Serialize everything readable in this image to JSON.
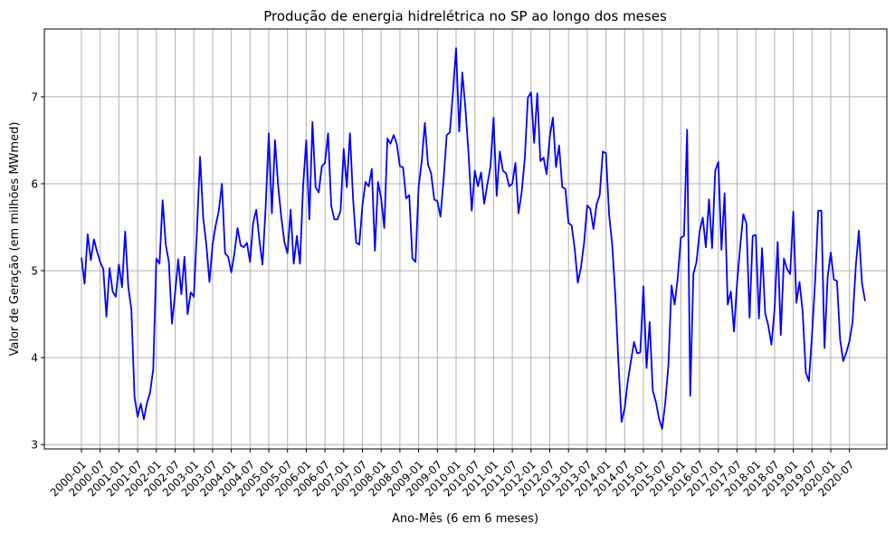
{
  "chart_data": {
    "type": "line",
    "title": "Produção de energia hidrelétrica no SP ao longo dos meses",
    "xlabel": "Ano-Mês (6 em 6 meses)",
    "ylabel": "Valor de Geração (em milhões MWmed)",
    "ylim": [
      2.95,
      7.78
    ],
    "yticks": [
      3,
      4,
      5,
      6,
      7
    ],
    "xticks": [
      "2000-01",
      "2000-07",
      "2001-01",
      "2001-07",
      "2002-01",
      "2002-07",
      "2003-01",
      "2003-07",
      "2004-01",
      "2004-07",
      "2005-01",
      "2005-07",
      "2006-01",
      "2006-07",
      "2007-01",
      "2007-07",
      "2008-01",
      "2008-07",
      "2009-01",
      "2009-07",
      "2010-01",
      "2010-07",
      "2011-01",
      "2011-07",
      "2012-01",
      "2012-07",
      "2013-01",
      "2013-07",
      "2014-01",
      "2014-07",
      "2015-01",
      "2015-07",
      "2016-01",
      "2016-07",
      "2017-01",
      "2017-07",
      "2018-01",
      "2018-07",
      "2019-01",
      "2019-07",
      "2020-01",
      "2020-07"
    ],
    "grid": true,
    "line_color": "#0000ff",
    "grid_color": "#b0b0b0",
    "x_start": "2000-01",
    "series": [
      {
        "values": [
          5.15,
          4.85,
          5.42,
          5.12,
          5.36,
          5.22,
          5.1,
          5.02,
          4.47,
          5.03,
          4.76,
          4.7,
          5.07,
          4.81,
          5.45,
          4.82,
          4.55,
          3.55,
          3.32,
          3.47,
          3.29,
          3.48,
          3.6,
          3.87,
          5.14,
          5.08,
          5.81,
          5.3,
          5.1,
          4.39,
          4.74,
          5.13,
          4.73,
          5.16,
          4.5,
          4.75,
          4.7,
          5.47,
          6.31,
          5.61,
          5.3,
          4.87,
          5.3,
          5.52,
          5.69,
          6.0,
          5.2,
          5.16,
          4.98,
          5.2,
          5.49,
          5.29,
          5.27,
          5.32,
          5.1,
          5.55,
          5.7,
          5.35,
          5.07,
          5.73,
          6.58,
          5.66,
          6.5,
          5.98,
          5.62,
          5.33,
          5.2,
          5.7,
          5.08,
          5.4,
          5.08,
          5.97,
          6.5,
          5.59,
          6.71,
          5.96,
          5.9,
          6.2,
          6.24,
          6.58,
          5.75,
          5.59,
          5.59,
          5.69,
          6.4,
          5.96,
          6.58,
          5.83,
          5.32,
          5.3,
          5.75,
          6.02,
          5.97,
          6.17,
          5.23,
          6.02,
          5.83,
          5.49,
          6.52,
          6.46,
          6.56,
          6.46,
          6.2,
          6.19,
          5.83,
          5.87,
          5.14,
          5.1,
          5.96,
          6.26,
          6.7,
          6.22,
          6.12,
          5.82,
          5.8,
          5.62,
          6.05,
          6.56,
          6.59,
          7.05,
          7.56,
          6.6,
          7.28,
          6.86,
          6.34,
          5.69,
          6.15,
          5.97,
          6.13,
          5.77,
          5.99,
          6.19,
          6.76,
          5.86,
          6.37,
          6.15,
          6.12,
          5.97,
          6.0,
          6.24,
          5.66,
          5.9,
          6.29,
          6.99,
          7.05,
          6.47,
          7.04,
          6.26,
          6.3,
          6.11,
          6.54,
          6.76,
          6.19,
          6.44,
          5.96,
          5.94,
          5.55,
          5.52,
          5.25,
          4.86,
          5.04,
          5.32,
          5.75,
          5.71,
          5.48,
          5.76,
          5.87,
          6.37,
          6.35,
          5.65,
          5.3,
          4.72,
          3.94,
          3.26,
          3.42,
          3.73,
          3.96,
          4.18,
          4.05,
          4.06,
          4.82,
          3.88,
          4.41,
          3.62,
          3.49,
          3.3,
          3.18,
          3.48,
          3.91,
          4.83,
          4.61,
          4.92,
          5.38,
          5.4,
          6.62,
          3.56,
          4.96,
          5.1,
          5.45,
          5.61,
          5.27,
          5.82,
          5.26,
          6.15,
          6.25,
          5.24,
          5.89,
          4.61,
          4.76,
          4.3,
          4.86,
          5.28,
          5.65,
          5.54,
          4.46,
          5.4,
          5.41,
          4.45,
          5.26,
          4.51,
          4.37,
          4.15,
          4.55,
          5.33,
          4.26,
          5.14,
          5.02,
          4.96,
          5.68,
          4.63,
          4.87,
          4.53,
          3.83,
          3.73,
          4.26,
          4.88,
          5.69,
          5.69,
          4.11,
          4.92,
          5.21,
          4.9,
          4.88,
          4.21,
          3.96,
          4.06,
          4.19,
          4.41,
          5.04,
          5.46,
          4.86,
          4.65
        ]
      }
    ]
  }
}
